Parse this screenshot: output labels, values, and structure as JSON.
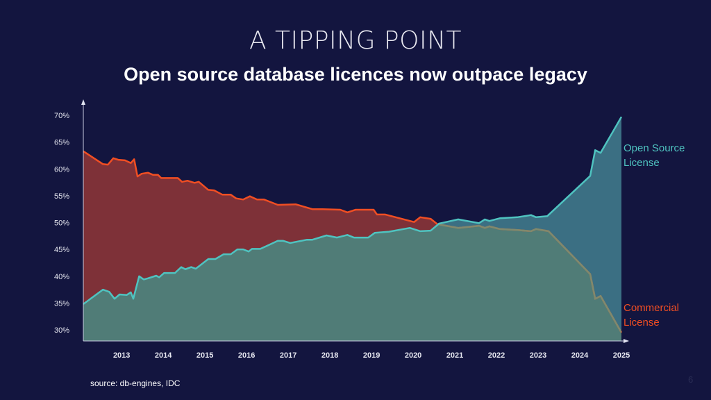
{
  "header": {
    "title": "A TIPPING POINT",
    "subtitle": "Open source database licences now outpace legacy"
  },
  "footer": {
    "source": "source: db-engines, IDC",
    "page_number": "6"
  },
  "chart_data": {
    "type": "area",
    "title": "",
    "xlabel": "",
    "ylabel": "",
    "xlim": [
      2012.08,
      2025
    ],
    "ylim": [
      26.8,
      72
    ],
    "x_ticks": [
      "2013",
      "2014",
      "2015",
      "2016",
      "2017",
      "2018",
      "2019",
      "2020",
      "2021",
      "2022",
      "2023",
      "2024",
      "2025"
    ],
    "y_ticks": [
      "30%",
      "35%",
      "40%",
      "45%",
      "50%",
      "55%",
      "60%",
      "65%",
      "70%"
    ],
    "grid": false,
    "legend": "direct labels at right end",
    "series": [
      {
        "name": "Open Source License",
        "color": "#4fc3c0",
        "points": [
          [
            2012.08,
            34.8
          ],
          [
            2012.55,
            37.5
          ],
          [
            2012.7,
            37.1
          ],
          [
            2012.83,
            35.8
          ],
          [
            2012.95,
            36.6
          ],
          [
            2013.12,
            36.5
          ],
          [
            2013.22,
            37.0
          ],
          [
            2013.28,
            35.8
          ],
          [
            2013.42,
            40.0
          ],
          [
            2013.53,
            39.4
          ],
          [
            2013.63,
            39.6
          ],
          [
            2013.83,
            40.1
          ],
          [
            2013.9,
            39.8
          ],
          [
            2014.02,
            40.6
          ],
          [
            2014.28,
            40.6
          ],
          [
            2014.43,
            41.7
          ],
          [
            2014.53,
            41.3
          ],
          [
            2014.67,
            41.7
          ],
          [
            2014.78,
            41.4
          ],
          [
            2015.08,
            43.2
          ],
          [
            2015.25,
            43.2
          ],
          [
            2015.45,
            44.1
          ],
          [
            2015.62,
            44.1
          ],
          [
            2015.78,
            45.0
          ],
          [
            2015.92,
            45.0
          ],
          [
            2016.05,
            44.6
          ],
          [
            2016.13,
            45.1
          ],
          [
            2016.33,
            45.1
          ],
          [
            2016.75,
            46.6
          ],
          [
            2016.88,
            46.6
          ],
          [
            2017.05,
            46.2
          ],
          [
            2017.45,
            46.8
          ],
          [
            2017.58,
            46.8
          ],
          [
            2017.92,
            47.6
          ],
          [
            2018.17,
            47.2
          ],
          [
            2018.42,
            47.7
          ],
          [
            2018.58,
            47.2
          ],
          [
            2018.92,
            47.2
          ],
          [
            2019.08,
            48.1
          ],
          [
            2019.42,
            48.3
          ],
          [
            2019.92,
            49.0
          ],
          [
            2020.17,
            48.4
          ],
          [
            2020.42,
            48.5
          ],
          [
            2020.62,
            49.8
          ],
          [
            2021.08,
            50.6
          ],
          [
            2021.58,
            49.9
          ],
          [
            2021.72,
            50.6
          ],
          [
            2021.83,
            50.3
          ],
          [
            2022.08,
            50.8
          ],
          [
            2022.5,
            51.0
          ],
          [
            2022.83,
            51.4
          ],
          [
            2022.95,
            51.0
          ],
          [
            2023.22,
            51.2
          ],
          [
            2024.25,
            58.7
          ],
          [
            2024.37,
            63.5
          ],
          [
            2024.5,
            63.0
          ],
          [
            2025.0,
            69.7
          ]
        ]
      },
      {
        "name": "Commercial License",
        "color": "#f04e23",
        "points": [
          [
            2012.08,
            63.3
          ],
          [
            2012.55,
            60.9
          ],
          [
            2012.67,
            60.8
          ],
          [
            2012.8,
            62.0
          ],
          [
            2012.92,
            61.7
          ],
          [
            2013.08,
            61.6
          ],
          [
            2013.22,
            61.1
          ],
          [
            2013.3,
            61.8
          ],
          [
            2013.38,
            58.6
          ],
          [
            2013.48,
            59.1
          ],
          [
            2013.63,
            59.3
          ],
          [
            2013.75,
            58.9
          ],
          [
            2013.87,
            58.9
          ],
          [
            2013.95,
            58.3
          ],
          [
            2014.35,
            58.3
          ],
          [
            2014.45,
            57.6
          ],
          [
            2014.58,
            57.8
          ],
          [
            2014.75,
            57.4
          ],
          [
            2014.85,
            57.6
          ],
          [
            2015.08,
            56.1
          ],
          [
            2015.22,
            56.0
          ],
          [
            2015.42,
            55.2
          ],
          [
            2015.62,
            55.2
          ],
          [
            2015.75,
            54.5
          ],
          [
            2015.92,
            54.3
          ],
          [
            2016.08,
            54.9
          ],
          [
            2016.25,
            54.3
          ],
          [
            2016.42,
            54.3
          ],
          [
            2016.75,
            53.3
          ],
          [
            2017.18,
            53.4
          ],
          [
            2017.58,
            52.5
          ],
          [
            2017.83,
            52.5
          ],
          [
            2018.25,
            52.4
          ],
          [
            2018.42,
            51.9
          ],
          [
            2018.62,
            52.4
          ],
          [
            2019.05,
            52.4
          ],
          [
            2019.13,
            51.5
          ],
          [
            2019.33,
            51.5
          ],
          [
            2020.02,
            50.1
          ],
          [
            2020.17,
            51.0
          ],
          [
            2020.42,
            50.7
          ],
          [
            2020.58,
            49.7
          ],
          [
            2021.08,
            49.0
          ],
          [
            2021.58,
            49.4
          ],
          [
            2021.72,
            49.0
          ],
          [
            2021.83,
            49.3
          ],
          [
            2022.08,
            48.8
          ],
          [
            2022.5,
            48.6
          ],
          [
            2022.83,
            48.4
          ],
          [
            2022.95,
            48.8
          ],
          [
            2023.25,
            48.4
          ],
          [
            2024.25,
            40.4
          ],
          [
            2024.37,
            35.8
          ],
          [
            2024.5,
            36.3
          ],
          [
            2025.0,
            29.5
          ]
        ]
      }
    ],
    "fill_colors": {
      "commercial_only": "#7e3138",
      "open_only": "#3b6f83",
      "overlap": "#507c77"
    },
    "labels": {
      "open_line1": "Open Source",
      "open_line2": "License",
      "commercial_line1": "Commercial",
      "commercial_line2": "License"
    }
  }
}
